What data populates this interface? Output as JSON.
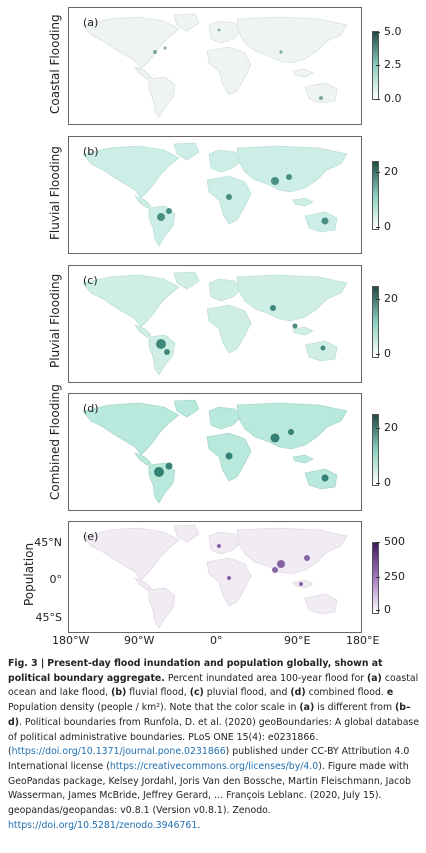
{
  "panels": [
    {
      "letter": "(a)",
      "ylabel": "Coastal Flooding",
      "ticks": [
        "5.0",
        "2.5",
        "0.0"
      ]
    },
    {
      "letter": "(b)",
      "ylabel": "Fluvial Flooding",
      "ticks": [
        "20",
        "0"
      ]
    },
    {
      "letter": "(c)",
      "ylabel": "Pluvial Flooding",
      "ticks": [
        "20",
        "0"
      ]
    },
    {
      "letter": "(d)",
      "ylabel": "Combined Flooding",
      "ticks": [
        "20",
        "0"
      ]
    },
    {
      "letter": "(e)",
      "ylabel": "Population",
      "ticks": [
        "500",
        "250",
        "0"
      ]
    }
  ],
  "colors": {
    "teal": "#1e6f62",
    "teal_light": "#bfe9df",
    "purple": "#5a2a82",
    "purple_light": "#e4cdec"
  },
  "lat_ticks": [
    "45°N",
    "0°",
    "45°S"
  ],
  "lon_ticks": [
    "180°W",
    "90°W",
    "0°",
    "90°E",
    "180°E"
  ],
  "caption": {
    "fig_label": "Fig. 3 |",
    "title": "Present-day flood inundation and population globally, shown at political boundary aggregate.",
    "s1": "Percent inundated area 100-year flood for ",
    "a": "(a)",
    "s2": " coastal ocean and lake flood, ",
    "b": "(b)",
    "s3": " fluvial flood, ",
    "c": "(c)",
    "s4": " pluvial flood, and ",
    "d": "(d)",
    "s5": " combined flood. ",
    "e": "e",
    "s6": " Population density (people / km²). Note that the color scale in ",
    "a2": "(a)",
    "s7": " is different from ",
    "bd": "(b–d)",
    "s8": ". Political boundaries from Runfola, D. et al. (2020) geoBoundaries: A global database of political administrative boundaries. PLoS ONE 15(4): e0231866. (",
    "link1": "https://doi.org/10.1371/journal.pone.0231866",
    "s9": ") published under CC-BY Attribution 4.0 International license (",
    "link2": "https://creativecommons.org/licenses/by/4.0",
    "s10": "). Figure made with GeoPandas package, Kelsey Jordahl, Joris Van den Bossche, Martin Fleischmann, Jacob Wasserman, James McBride, Jeffrey Gerard, … François Leblanc. (2020, July 15). geopandas/geopandas: v0.8.1 (Version v0.8.1). Zenodo. ",
    "link3": "https://doi.org/10.5281/zenodo.3946761",
    "s11": "."
  }
}
